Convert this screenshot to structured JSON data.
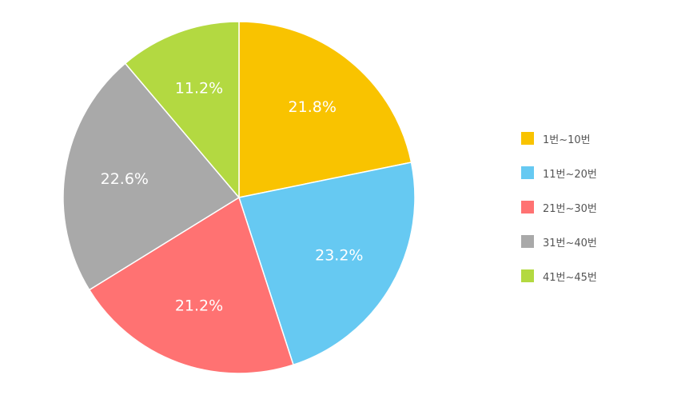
{
  "chart_data": {
    "type": "pie",
    "categories": [
      "1번~10번",
      "11번~20번",
      "21번~30번",
      "31번~40번",
      "41번~45번"
    ],
    "values": [
      21.8,
      23.2,
      21.2,
      22.6,
      11.2
    ],
    "value_labels": [
      "21.8%",
      "23.2%",
      "21.2%",
      "22.6%",
      "11.2%"
    ],
    "colors": [
      "#F9C300",
      "#66C9F2",
      "#FF7272",
      "#A9A9A9",
      "#B3D941"
    ],
    "start_angle": "12 o'clock",
    "direction": "clockwise",
    "legend_placement": "right"
  },
  "legend": {
    "items": [
      {
        "label": "1번~10번",
        "color": "#F9C300"
      },
      {
        "label": "11번~20번",
        "color": "#66C9F2"
      },
      {
        "label": "21번~30번",
        "color": "#FF7272"
      },
      {
        "label": "31번~40번",
        "color": "#A9A9A9"
      },
      {
        "label": "41번~45번",
        "color": "#B3D941"
      }
    ]
  }
}
